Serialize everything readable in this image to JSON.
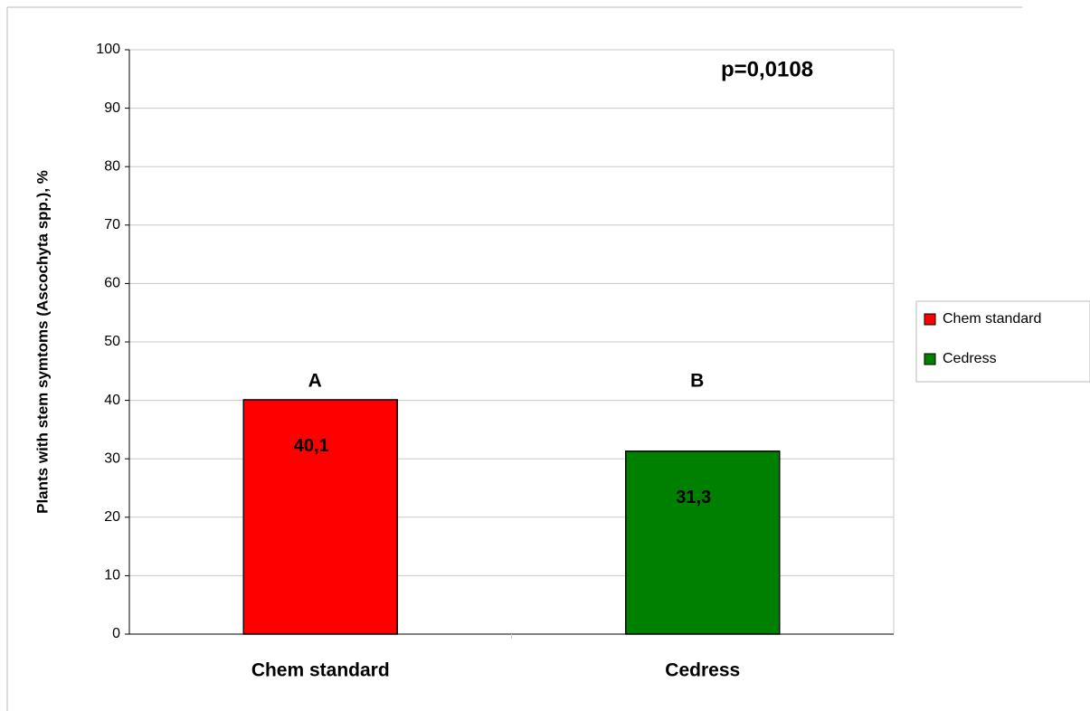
{
  "chart_data": {
    "type": "bar",
    "y_label": "Plants with stem symtoms (Ascochyta spp.), %",
    "annotation": "p=0,0108",
    "categories": [
      "Chem standard",
      "Cedress"
    ],
    "group_letters": [
      "A",
      "B"
    ],
    "series": [
      {
        "name": "Chem standard",
        "color": "#ff0000",
        "values": [
          40.1,
          null
        ],
        "value_labels": [
          "40,1",
          null
        ]
      },
      {
        "name": "Cedress",
        "color": "#008000",
        "values": [
          null,
          31.3
        ],
        "value_labels": [
          null,
          "31,3"
        ]
      }
    ],
    "ylim": [
      0,
      100
    ],
    "yticks": [
      0,
      10,
      20,
      30,
      40,
      50,
      60,
      70,
      80,
      90,
      100
    ],
    "grid": true,
    "legend": "right"
  }
}
